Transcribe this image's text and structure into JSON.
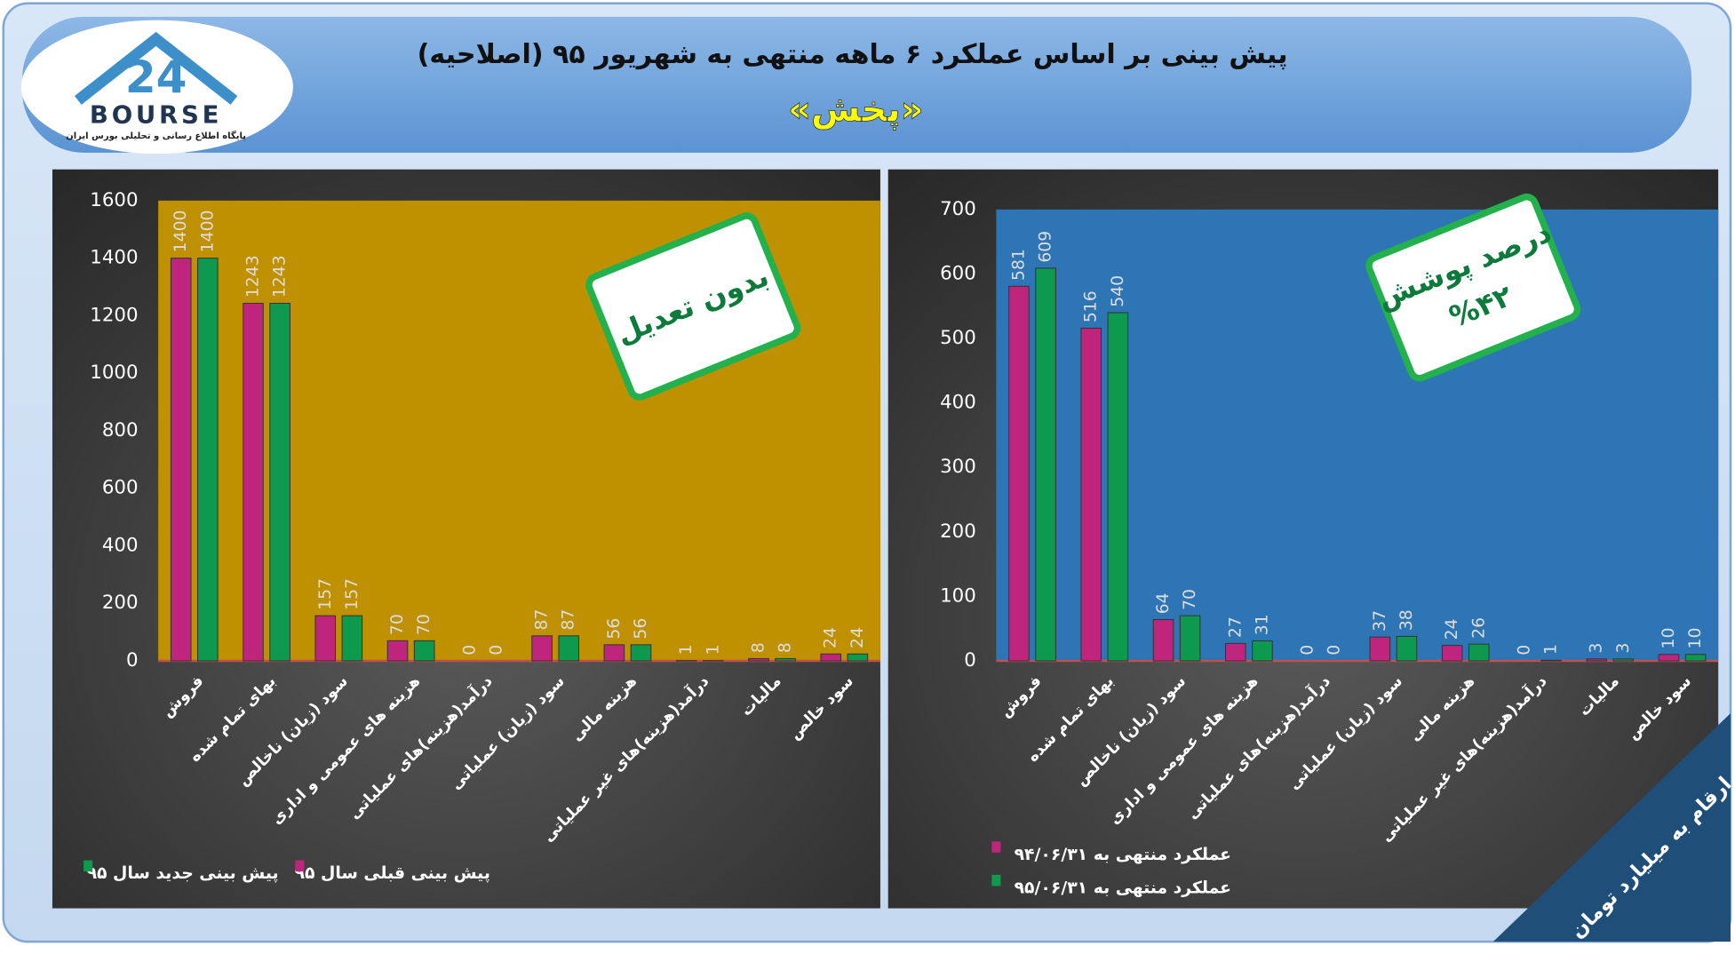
{
  "header": {
    "title": "پیش بینی بر اساس عملکرد ۶ ماهه منتهی به شهریور ۹۵ (اصلاحیه)",
    "subtitle": "«پخش»",
    "logo_number": "24",
    "logo_name": "BOURSE",
    "logo_caption": "پایگاه اطلاع رسانی و تحلیلی بورس ایران"
  },
  "note": "ارقام به میلیارد تومان",
  "chart_data": [
    {
      "type": "bar",
      "background": "#BF9000",
      "annotations": [
        "بدون تعدیل"
      ],
      "legend": "bottom",
      "categories": [
        "فروش",
        "بهای تمام شده",
        "سود (زیان) ناخالص",
        "هزینه های عمومی و اداری",
        "درآمد(هزینه)های عملیاتی",
        "سود (زیان) عملیاتی",
        "هزینه مالی",
        "درآمد(هزینه)های غیر عملیاتی",
        "مالیات",
        "سود خالص"
      ],
      "series": [
        {
          "name": "پیش بینی قبلی سال ۹۵",
          "color": "#C0257E",
          "values": [
            1400,
            1243,
            157,
            70,
            0,
            87,
            56,
            1,
            8,
            24
          ]
        },
        {
          "name": "پیش بینی جدید سال ۹۵",
          "color": "#0E9A4E",
          "values": [
            1400,
            1243,
            157,
            70,
            0,
            87,
            56,
            1,
            8,
            24
          ]
        }
      ],
      "ylim": [
        0,
        1600
      ],
      "yticks": [
        0,
        200,
        400,
        600,
        800,
        1000,
        1200,
        1400,
        1600
      ],
      "grid": false
    },
    {
      "type": "bar",
      "background": "#2E75B6",
      "annotations": [
        "درصد پوشش",
        "%۴۲"
      ],
      "legend": "bottom",
      "categories": [
        "فروش",
        "بهای تمام شده",
        "سود (زیان) ناخالص",
        "هزینه های عمومی و اداری",
        "درآمد(هزینه)های عملیاتی",
        "سود (زیان) عملیاتی",
        "هزینه مالی",
        "درآمد(هزینه)های غیر عملیاتی",
        "مالیات",
        "سود خالص"
      ],
      "series": [
        {
          "name": "عملکرد منتهی به ۹۴/۰۶/۳۱",
          "color": "#C0257E",
          "values": [
            581,
            516,
            64,
            27,
            0,
            37,
            24,
            0,
            3,
            10
          ]
        },
        {
          "name": "عملکرد منتهی به ۹۵/۰۶/۳۱",
          "color": "#0E9A4E",
          "values": [
            609,
            540,
            70,
            31,
            0,
            38,
            26,
            1,
            3,
            10
          ]
        }
      ],
      "ylim": [
        0,
        700
      ],
      "yticks": [
        0,
        100,
        200,
        300,
        400,
        500,
        600,
        700
      ],
      "grid": false
    }
  ]
}
